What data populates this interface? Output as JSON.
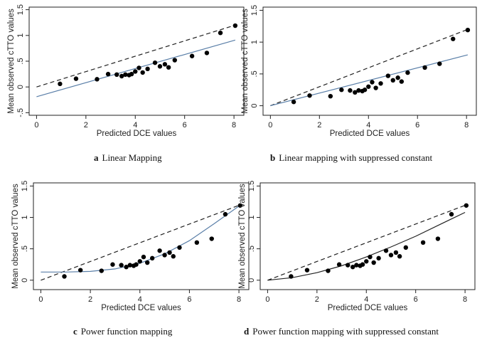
{
  "chart_data": [
    {
      "type": "scatter",
      "caption_letter": "a",
      "caption_text": "Linear Mapping",
      "xlabel": "Predicted DCE values",
      "ylabel": "Mean observed cTTO values",
      "xlim": [
        -0.3,
        8.4
      ],
      "ylim": [
        -0.55,
        1.55
      ],
      "xticks": [
        0,
        2,
        4,
        6,
        8
      ],
      "xtick_labels": [
        "0",
        "2",
        "4",
        "6",
        "8"
      ],
      "yticks": [
        -0.5,
        0,
        0.5,
        1,
        1.5
      ],
      "ytick_labels": [
        "-.5",
        "0",
        ".5",
        "1",
        "1.5"
      ],
      "grid": false,
      "series": [
        {
          "role": "observed",
          "x": [
            0.95,
            1.6,
            2.45,
            2.9,
            3.25,
            3.45,
            3.6,
            3.75,
            3.85,
            4.0,
            4.15,
            4.3,
            4.5,
            4.8,
            5.0,
            5.2,
            5.35,
            5.6,
            6.3,
            6.9,
            7.45,
            8.05
          ],
          "y": [
            0.06,
            0.16,
            0.15,
            0.25,
            0.24,
            0.21,
            0.24,
            0.23,
            0.25,
            0.3,
            0.37,
            0.28,
            0.35,
            0.47,
            0.4,
            0.44,
            0.38,
            0.52,
            0.6,
            0.66,
            1.05,
            1.19
          ]
        },
        {
          "role": "identity",
          "style": "dashed",
          "color": "#222222",
          "x": [
            0,
            8.05
          ],
          "y": [
            0,
            1.2
          ]
        },
        {
          "role": "fit",
          "style": "solid",
          "color": "#5a7fa8",
          "x": [
            0,
            8.05
          ],
          "y": [
            -0.19,
            0.91
          ]
        }
      ]
    },
    {
      "type": "scatter",
      "caption_letter": "b",
      "caption_text": "Linear mapping with suppressed constant",
      "xlabel": "Predicted DCE values",
      "ylabel": "Mean observed cTTO values",
      "xlim": [
        -0.3,
        8.4
      ],
      "ylim": [
        -0.15,
        1.55
      ],
      "xticks": [
        0,
        2,
        4,
        6,
        8
      ],
      "xtick_labels": [
        "0",
        "2",
        "4",
        "6",
        "8"
      ],
      "yticks": [
        0,
        0.5,
        1,
        1.5
      ],
      "ytick_labels": [
        "0",
        ".5",
        "1",
        "1.5"
      ],
      "grid": false,
      "series": [
        {
          "role": "observed",
          "x": [
            0.95,
            1.6,
            2.45,
            2.9,
            3.25,
            3.45,
            3.6,
            3.75,
            3.85,
            4.0,
            4.15,
            4.3,
            4.5,
            4.8,
            5.0,
            5.2,
            5.35,
            5.6,
            6.3,
            6.9,
            7.45,
            8.05
          ],
          "y": [
            0.06,
            0.16,
            0.15,
            0.25,
            0.24,
            0.21,
            0.24,
            0.23,
            0.25,
            0.3,
            0.37,
            0.28,
            0.35,
            0.47,
            0.4,
            0.44,
            0.38,
            0.52,
            0.6,
            0.66,
            1.05,
            1.19
          ]
        },
        {
          "role": "identity",
          "style": "dashed",
          "color": "#222222",
          "x": [
            0,
            8.05
          ],
          "y": [
            0,
            1.2
          ]
        },
        {
          "role": "fit",
          "style": "solid",
          "color": "#5a7fa8",
          "x": [
            0,
            8.05
          ],
          "y": [
            0,
            0.8
          ]
        }
      ]
    },
    {
      "type": "scatter",
      "caption_letter": "c",
      "caption_text": "Power function mapping",
      "xlabel": "Predicted DCE values",
      "ylabel": "Mean observed cTTO values",
      "xlim": [
        -0.3,
        8.4
      ],
      "ylim": [
        -0.15,
        1.55
      ],
      "xticks": [
        0,
        2,
        4,
        6,
        8
      ],
      "xtick_labels": [
        "0",
        "2",
        "4",
        "6",
        "8"
      ],
      "yticks": [
        0,
        0.5,
        1,
        1.5
      ],
      "ytick_labels": [
        "0",
        ".5",
        "1",
        "1.5"
      ],
      "grid": false,
      "series": [
        {
          "role": "observed",
          "x": [
            0.95,
            1.6,
            2.45,
            2.9,
            3.25,
            3.45,
            3.6,
            3.75,
            3.85,
            4.0,
            4.15,
            4.3,
            4.5,
            4.8,
            5.0,
            5.2,
            5.35,
            5.6,
            6.3,
            6.9,
            7.45,
            8.05
          ],
          "y": [
            0.06,
            0.16,
            0.15,
            0.25,
            0.24,
            0.21,
            0.24,
            0.23,
            0.25,
            0.3,
            0.37,
            0.28,
            0.35,
            0.47,
            0.4,
            0.44,
            0.38,
            0.52,
            0.6,
            0.66,
            1.05,
            1.19
          ]
        },
        {
          "role": "identity",
          "style": "dashed",
          "color": "#222222",
          "x": [
            0,
            8.05
          ],
          "y": [
            0,
            1.2
          ]
        },
        {
          "role": "fit",
          "style": "solid",
          "color": "#5a7fa8",
          "x": [
            0,
            1,
            2,
            3,
            4,
            5,
            6,
            7,
            8
          ],
          "y": [
            0.13,
            0.13,
            0.14,
            0.18,
            0.27,
            0.42,
            0.63,
            0.9,
            1.18
          ]
        }
      ]
    },
    {
      "type": "scatter",
      "caption_letter": "d",
      "caption_text": "Power function mapping with suppressed constant",
      "xlabel": "Predicted DCE values",
      "ylabel": "Mean observed cTTO values",
      "xlim": [
        -0.3,
        8.4
      ],
      "ylim": [
        -0.15,
        1.55
      ],
      "xticks": [
        0,
        2,
        4,
        6,
        8
      ],
      "xtick_labels": [
        "0",
        "2",
        "4",
        "6",
        "8"
      ],
      "yticks": [
        0,
        0.5,
        1,
        1.5
      ],
      "ytick_labels": [
        "0",
        ".5",
        "1",
        "1.5"
      ],
      "grid": false,
      "series": [
        {
          "role": "observed",
          "x": [
            0.95,
            1.6,
            2.45,
            2.9,
            3.25,
            3.45,
            3.6,
            3.75,
            3.85,
            4.0,
            4.15,
            4.3,
            4.5,
            4.8,
            5.0,
            5.2,
            5.35,
            5.6,
            6.3,
            6.9,
            7.45,
            8.05
          ],
          "y": [
            0.06,
            0.16,
            0.15,
            0.25,
            0.24,
            0.21,
            0.24,
            0.23,
            0.25,
            0.3,
            0.37,
            0.28,
            0.35,
            0.47,
            0.4,
            0.44,
            0.38,
            0.52,
            0.6,
            0.66,
            1.05,
            1.19
          ]
        },
        {
          "role": "identity",
          "style": "dashed",
          "color": "#222222",
          "x": [
            0,
            8.05
          ],
          "y": [
            0,
            1.2
          ]
        },
        {
          "role": "fit",
          "style": "solid",
          "color": "#222222",
          "x": [
            0,
            1,
            2,
            3,
            4,
            5,
            6,
            7,
            8
          ],
          "y": [
            0,
            0.04,
            0.12,
            0.23,
            0.37,
            0.53,
            0.7,
            0.89,
            1.08
          ]
        }
      ]
    }
  ]
}
